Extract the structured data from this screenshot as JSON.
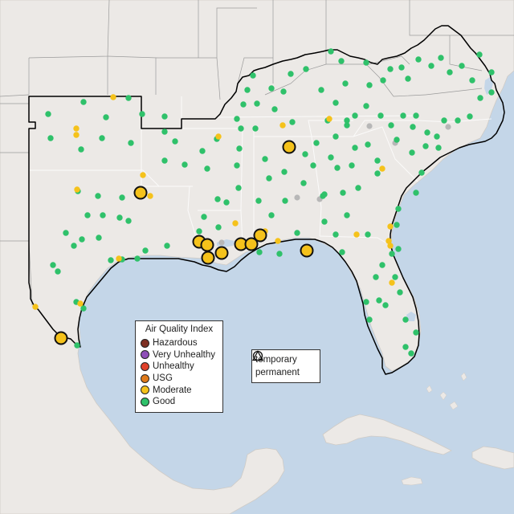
{
  "legend": {
    "title": "Air Quality Index",
    "categories": [
      {
        "label": "Hazardous",
        "color": "#7e2f22"
      },
      {
        "label": "Very Unhealthy",
        "color": "#8f4fb8"
      },
      {
        "label": "Unhealthy",
        "color": "#e0412a"
      },
      {
        "label": "USG",
        "color": "#e07a1a"
      },
      {
        "label": "Moderate",
        "color": "#f5c21b"
      },
      {
        "label": "Good",
        "color": "#2fc16a"
      }
    ],
    "monitor_types": [
      {
        "label": "temporary",
        "icon": "circle-icon"
      },
      {
        "label": "permanent",
        "icon": "triangle-icon"
      }
    ]
  },
  "colors": {
    "water": "#c4d6e8",
    "land": "#ece9e6",
    "no_data": "#b7b7b7",
    "boundary": "#000000"
  }
}
